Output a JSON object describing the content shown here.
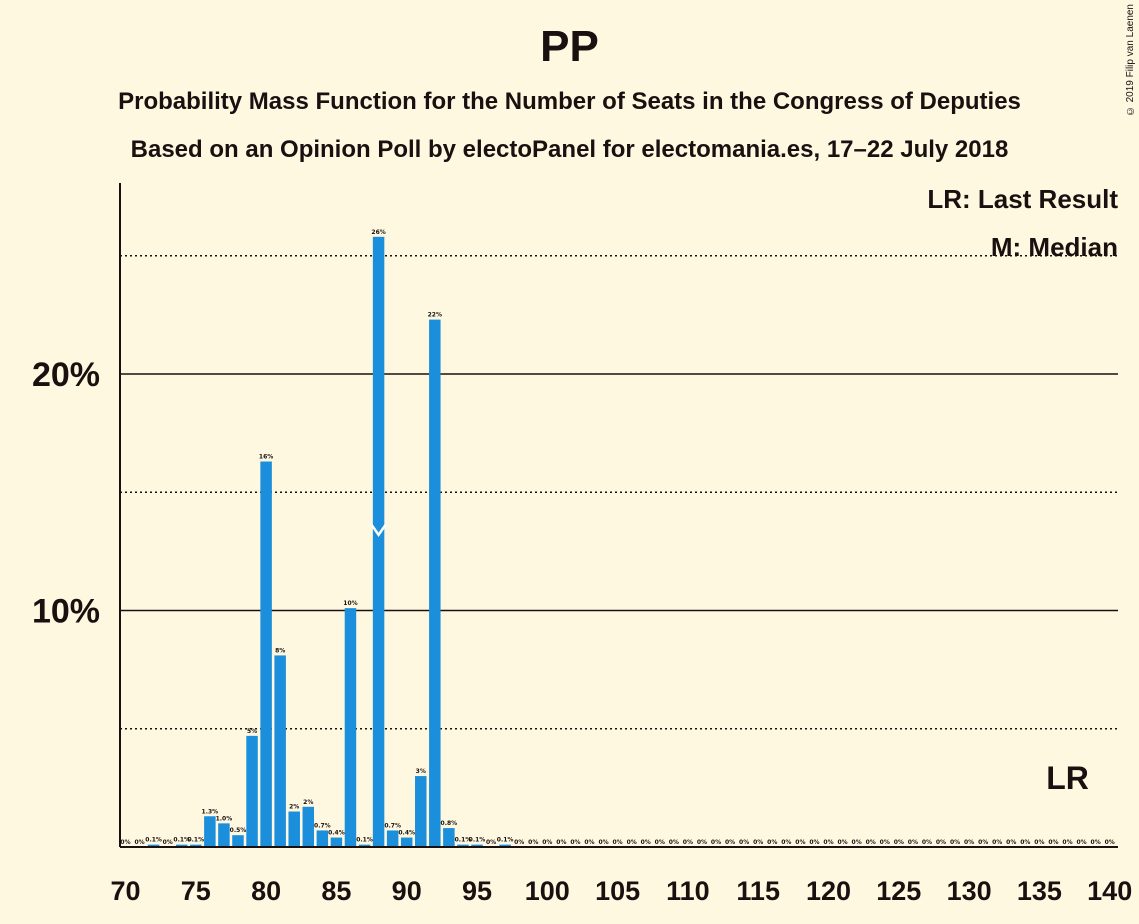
{
  "header": {
    "title": "PP",
    "subtitle_1": "Probability Mass Function for the Number of Seats in the Congress of Deputies",
    "subtitle_2": "Based on an Opinion Poll by electoPanel for electomania.es, 17–22 July 2018",
    "copyright": "© 2019 Filip van Laenen"
  },
  "legend": {
    "last_result": "LR: Last Result",
    "median": "M: Median"
  },
  "colors": {
    "bar": "#1c8fdc",
    "background": "#fff8e1",
    "text": "#1a1010"
  },
  "chart_data": {
    "type": "bar",
    "title": "PP",
    "xlabel": "",
    "ylabel": "",
    "xlim": [
      70,
      140
    ],
    "ylim": [
      0,
      28
    ],
    "x_ticks": [
      70,
      75,
      80,
      85,
      90,
      95,
      100,
      105,
      110,
      115,
      120,
      125,
      130,
      135,
      140
    ],
    "y_ticks_solid": [
      10,
      20
    ],
    "y_ticks_dotted": [
      5,
      15,
      25
    ],
    "y_tick_labels": [
      "10%",
      "20%"
    ],
    "median_seat": 88,
    "median_marker": "M",
    "last_result_seat": 137,
    "last_result_label": "LR",
    "seats": [
      70,
      71,
      72,
      73,
      74,
      75,
      76,
      77,
      78,
      79,
      80,
      81,
      82,
      83,
      84,
      85,
      86,
      87,
      88,
      89,
      90,
      91,
      92,
      93,
      94,
      95,
      96,
      97,
      98,
      99,
      100,
      101,
      102,
      103,
      104,
      105,
      106,
      107,
      108,
      109,
      110,
      111,
      112,
      113,
      114,
      115,
      116,
      117,
      118,
      119,
      120,
      121,
      122,
      123,
      124,
      125,
      126,
      127,
      128,
      129,
      130,
      131,
      132,
      133,
      134,
      135,
      136,
      137,
      138,
      139,
      140
    ],
    "values": [
      0,
      0,
      0.1,
      0,
      0.1,
      0.1,
      1.3,
      1.0,
      0.5,
      4.7,
      16.3,
      8.1,
      1.5,
      1.7,
      0.7,
      0.4,
      10.1,
      0.1,
      25.8,
      0.7,
      0.4,
      3.0,
      22.3,
      0.8,
      0.1,
      0.1,
      0,
      0.1,
      0,
      0,
      0,
      0,
      0,
      0,
      0,
      0,
      0,
      0,
      0,
      0,
      0,
      0,
      0,
      0,
      0,
      0,
      0,
      0,
      0,
      0,
      0,
      0,
      0,
      0,
      0,
      0,
      0,
      0,
      0,
      0,
      0,
      0,
      0,
      0,
      0,
      0,
      0,
      0,
      0,
      0,
      0
    ],
    "labels": [
      "0%",
      "0%",
      "0.1%",
      "0%",
      "0.1%",
      "0.1%",
      "1.3%",
      "1.0%",
      "0.5%",
      "5%",
      "16%",
      "8%",
      "2%",
      "2%",
      "0.7%",
      "0.4%",
      "10%",
      "0.1%",
      "26%",
      "0.7%",
      "0.4%",
      "3%",
      "22%",
      "0.8%",
      "0.1%",
      "0.1%",
      "0%",
      "0.1%",
      "0%",
      "0%",
      "0%",
      "0%",
      "0%",
      "0%",
      "0%",
      "0%",
      "0%",
      "0%",
      "0%",
      "0%",
      "0%",
      "0%",
      "0%",
      "0%",
      "0%",
      "0%",
      "0%",
      "0%",
      "0%",
      "0%",
      "0%",
      "0%",
      "0%",
      "0%",
      "0%",
      "0%",
      "0%",
      "0%",
      "0%",
      "0%",
      "0%",
      "0%",
      "0%",
      "0%",
      "0%",
      "0%",
      "0%",
      "0%",
      "0%",
      "0%",
      "0%"
    ]
  }
}
